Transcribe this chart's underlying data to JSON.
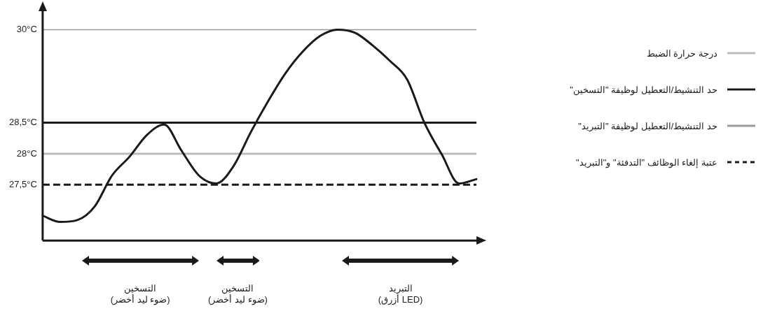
{
  "chart_data": {
    "type": "line",
    "categories": [
      null,
      null,
      null,
      null,
      null,
      null,
      null,
      null,
      null,
      null,
      null,
      null,
      null,
      null,
      null,
      null,
      null,
      null,
      null,
      null,
      null,
      null,
      null,
      null,
      null,
      null
    ],
    "series": [
      {
        "color": "#1a1a1a",
        "values": [
          27.0,
          26.9,
          26.93,
          27.15,
          27.65,
          27.95,
          28.3,
          28.47,
          28.05,
          27.65,
          27.52,
          27.8,
          28.35,
          28.85,
          29.3,
          29.65,
          29.9,
          30.0,
          29.95,
          29.75,
          29.5,
          29.2,
          28.5,
          27.99,
          27.52,
          27.59
        ]
      }
    ],
    "ylim": [
      26.6,
      30.3
    ],
    "yticks": [
      {
        "value": 27.5,
        "label": "27,5°C"
      },
      {
        "value": 28,
        "label": "28°C"
      },
      {
        "value": 28.5,
        "label": "28,5°C"
      },
      {
        "value": 30,
        "label": "30°C"
      }
    ],
    "tick_labels": "y",
    "grid": false,
    "marker": "none",
    "line_style": "solid",
    "legend": "right",
    "ref_lines": [
      {
        "axis": "y",
        "value": 28,
        "label": "درجة حرارة الضبط",
        "color": "#bbbbbb",
        "line_style": "solid"
      },
      {
        "axis": "y",
        "value": 28.5,
        "label": "حد التنشيط/التعطيل لوظيفة \"التسخين\"",
        "color": "#1a1a1a",
        "line_style": "solid"
      },
      {
        "axis": "y",
        "value": 30,
        "label": "حد التنشيط/التعطيل لوظيفة \"التبريد\"",
        "color": "#999999",
        "line_style": "solid"
      },
      {
        "axis": "y",
        "value": 27.5,
        "label": "عتبة إلغاء الوظائف \"التدفئة\" و\"التبريد\"",
        "color": "#1a1a1a",
        "line_style": "dashed"
      }
    ],
    "annotations": [
      "التسخين\n(ضوء ليد أخضر)",
      "التسخين\n(ضوء ليد أخضر)",
      "التبريد\n(LED أزرق)"
    ]
  }
}
